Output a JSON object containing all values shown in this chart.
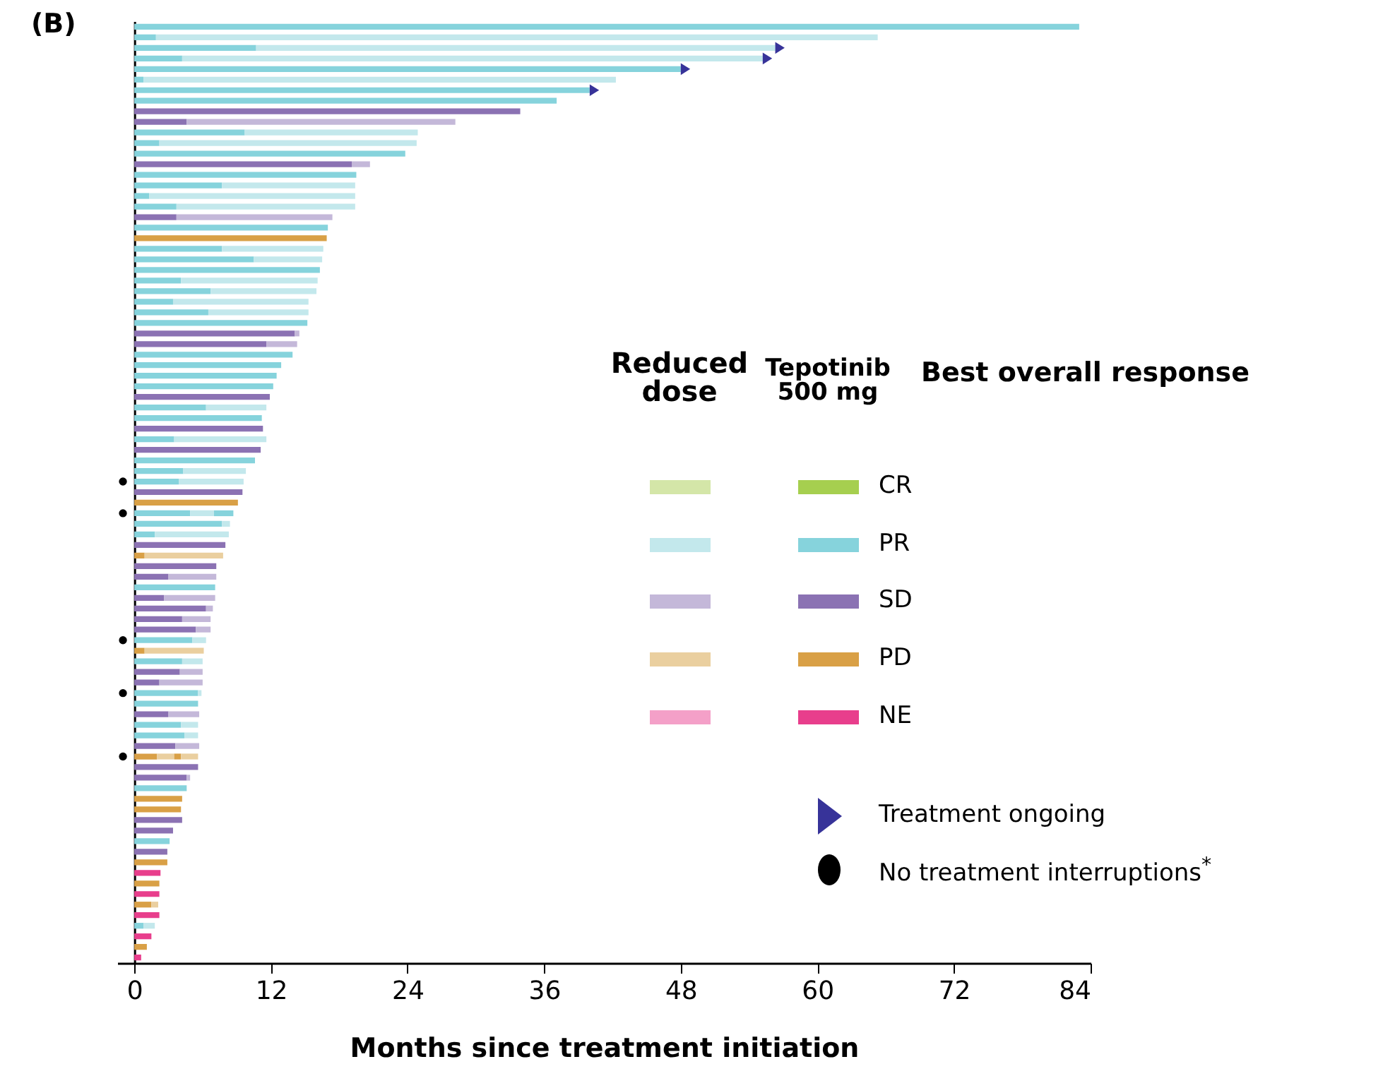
{
  "chart_data": {
    "type": "bar",
    "orientation": "horizontal",
    "stacked": true,
    "title": "(B)",
    "xlabel": "Months since treatment initiation",
    "legend_title": "Best overall response",
    "legend": "right",
    "annotations": [
      "Tepotinib 500 mg",
      "Reduced dose"
    ],
    "categories": [
      null,
      null,
      null,
      null,
      null,
      null,
      null,
      null,
      null,
      null,
      null,
      null,
      null,
      null,
      null,
      null,
      null,
      null,
      null,
      null,
      null,
      null,
      null,
      null,
      null,
      null,
      null,
      null,
      null,
      null,
      null,
      null,
      null,
      null,
      null,
      null,
      null,
      null,
      null,
      null,
      null,
      null,
      null,
      null,
      null,
      null,
      null,
      null,
      null,
      null,
      null,
      null,
      null,
      null,
      null,
      null,
      null,
      null,
      null,
      null,
      null,
      null,
      null,
      null,
      null,
      null,
      null,
      null,
      null,
      null,
      null,
      null,
      null,
      null,
      null,
      null,
      null,
      null,
      null,
      null,
      null,
      null,
      null,
      null,
      null,
      null,
      null,
      null,
      null
    ],
    "xlim": [
      -1.5,
      84
    ],
    "xticks": [
      0,
      12,
      24,
      36,
      48,
      60,
      72,
      84
    ],
    "series": [
      {
        "name": "CR",
        "color": "#a6cf4f",
        "values": [
          null,
          null,
          null,
          null,
          null,
          null,
          null,
          null,
          null,
          null,
          null,
          null,
          null,
          null,
          null,
          null,
          null,
          null,
          null,
          null,
          null,
          null,
          null,
          null,
          null,
          null,
          null,
          null,
          null,
          null,
          null,
          null,
          null,
          null,
          null,
          null,
          null,
          null,
          null,
          null,
          null,
          null,
          null,
          null,
          null,
          null,
          null,
          null,
          null,
          null,
          null,
          null,
          null,
          null,
          null,
          null,
          null,
          null,
          null,
          null,
          null,
          null,
          null,
          null,
          null,
          null,
          null,
          null,
          null,
          null,
          null,
          null,
          null,
          null,
          null,
          null,
          null,
          null,
          null,
          null,
          null,
          null,
          null,
          null,
          null,
          null,
          null,
          null,
          null
        ]
      },
      {
        "name": "PR",
        "color": "#86d3dc",
        "values": [
          83.0,
          1.9,
          10.7,
          4.2,
          48.0,
          0.8,
          40.0,
          37.1,
          null,
          null,
          9.7,
          2.2,
          23.8,
          null,
          19.5,
          7.7,
          1.3,
          3.7,
          null,
          17.0,
          null,
          7.7,
          10.5,
          16.3,
          4.1,
          6.7,
          3.4,
          6.5,
          15.2,
          null,
          null,
          13.9,
          12.9,
          12.5,
          12.2,
          null,
          6.3,
          11.2,
          null,
          3.5,
          null,
          10.6,
          4.3,
          3.9,
          null,
          null,
          4.9,
          7.7,
          1.8,
          null,
          null,
          null,
          null,
          7.1,
          null,
          null,
          null,
          null,
          5.1,
          null,
          4.2,
          null,
          null,
          5.6,
          5.6,
          null,
          4.1,
          4.4,
          null,
          null,
          null,
          null,
          4.6,
          null,
          null,
          null,
          null,
          3.1,
          null,
          null,
          null,
          null,
          null,
          null,
          null,
          0.8,
          null,
          null,
          null
        ]
      },
      {
        "name": "SD",
        "color": "#8b72b3",
        "values": [
          null,
          null,
          null,
          null,
          null,
          null,
          null,
          null,
          33.9,
          4.6,
          null,
          null,
          null,
          19.1,
          null,
          null,
          null,
          null,
          3.7,
          null,
          null,
          null,
          null,
          null,
          null,
          null,
          null,
          null,
          null,
          14.1,
          11.6,
          null,
          null,
          null,
          null,
          11.9,
          null,
          null,
          11.3,
          null,
          11.1,
          null,
          null,
          null,
          9.5,
          null,
          null,
          null,
          null,
          8.0,
          null,
          7.2,
          3.0,
          null,
          2.6,
          6.3,
          4.2,
          5.4,
          null,
          null,
          null,
          4.0,
          2.2,
          null,
          null,
          3.0,
          null,
          null,
          3.6,
          null,
          5.6,
          4.6,
          null,
          null,
          null,
          4.2,
          3.4,
          null,
          2.9,
          null,
          null,
          null,
          null,
          null,
          null,
          null,
          null,
          null,
          null
        ]
      },
      {
        "name": "PD",
        "color": "#d9a046",
        "values": [
          null,
          null,
          null,
          null,
          null,
          null,
          null,
          null,
          null,
          null,
          null,
          null,
          null,
          null,
          null,
          null,
          null,
          null,
          null,
          null,
          16.9,
          null,
          null,
          null,
          null,
          null,
          null,
          null,
          null,
          null,
          null,
          null,
          null,
          null,
          null,
          null,
          null,
          null,
          null,
          null,
          null,
          null,
          null,
          null,
          null,
          9.1,
          null,
          null,
          null,
          null,
          0.9,
          null,
          null,
          null,
          null,
          null,
          null,
          null,
          null,
          0.9,
          null,
          null,
          null,
          null,
          null,
          null,
          null,
          null,
          null,
          2.0,
          null,
          null,
          null,
          4.2,
          4.1,
          null,
          null,
          null,
          null,
          2.9,
          null,
          2.2,
          null,
          1.5,
          null,
          null,
          null,
          1.1,
          null
        ]
      },
      {
        "name": "NE",
        "color": "#e83e8c",
        "values": [
          null,
          null,
          null,
          null,
          null,
          null,
          null,
          null,
          null,
          null,
          null,
          null,
          null,
          null,
          null,
          null,
          null,
          null,
          null,
          null,
          null,
          null,
          null,
          null,
          null,
          null,
          null,
          null,
          null,
          null,
          null,
          null,
          null,
          null,
          null,
          null,
          null,
          null,
          null,
          null,
          null,
          null,
          null,
          null,
          null,
          null,
          null,
          null,
          null,
          null,
          null,
          null,
          null,
          null,
          null,
          null,
          null,
          null,
          null,
          null,
          null,
          null,
          null,
          null,
          null,
          null,
          null,
          null,
          null,
          null,
          null,
          null,
          null,
          null,
          null,
          null,
          null,
          null,
          null,
          null,
          2.3,
          null,
          2.2,
          null,
          2.2,
          null,
          1.5,
          null,
          0.6
        ]
      },
      {
        "color": "#d4e6a8",
        "values": [
          null,
          null,
          null,
          null,
          null,
          null,
          null,
          null,
          null,
          null,
          null,
          null,
          null,
          null,
          null,
          null,
          null,
          null,
          null,
          null,
          null,
          null,
          null,
          null,
          null,
          null,
          null,
          null,
          null,
          null,
          null,
          null,
          null,
          null,
          null,
          null,
          null,
          null,
          null,
          null,
          null,
          null,
          null,
          null,
          null,
          null,
          null,
          null,
          null,
          null,
          null,
          null,
          null,
          null,
          null,
          null,
          null,
          null,
          null,
          null,
          null,
          null,
          null,
          null,
          null,
          null,
          null,
          null,
          null,
          null,
          null,
          null,
          null,
          null,
          null,
          null,
          null,
          null,
          null,
          null,
          null,
          null,
          null,
          null,
          null,
          null,
          null,
          null,
          null
        ]
      },
      {
        "color": "#c3e8ec",
        "values": [
          null,
          63.4,
          45.6,
          51.0,
          null,
          41.5,
          null,
          null,
          null,
          null,
          15.2,
          22.6,
          null,
          null,
          null,
          11.7,
          18.1,
          15.7,
          null,
          null,
          null,
          8.9,
          6.0,
          null,
          12.0,
          9.3,
          11.9,
          8.8,
          null,
          null,
          null,
          null,
          null,
          null,
          null,
          null,
          5.3,
          null,
          null,
          8.1,
          null,
          null,
          5.5,
          5.7,
          null,
          null,
          2.1,
          0.7,
          6.5,
          null,
          null,
          null,
          null,
          null,
          null,
          null,
          null,
          null,
          1.2,
          null,
          1.8,
          null,
          null,
          0.3,
          null,
          null,
          1.5,
          1.2,
          null,
          null,
          null,
          null,
          null,
          null,
          null,
          null,
          null,
          null,
          null,
          null,
          null,
          null,
          null,
          null,
          null,
          1.0,
          null,
          null,
          null
        ]
      },
      {
        "color": "#c4b8d9",
        "values": [
          null,
          null,
          null,
          null,
          null,
          null,
          null,
          null,
          null,
          23.6,
          null,
          null,
          null,
          1.6,
          null,
          null,
          null,
          null,
          13.7,
          null,
          null,
          null,
          null,
          null,
          null,
          null,
          null,
          null,
          null,
          0.4,
          2.7,
          null,
          null,
          null,
          null,
          null,
          null,
          null,
          null,
          null,
          null,
          null,
          null,
          null,
          null,
          null,
          null,
          null,
          null,
          null,
          null,
          null,
          4.2,
          null,
          4.5,
          0.6,
          2.5,
          1.3,
          null,
          null,
          null,
          2.0,
          3.8,
          null,
          null,
          2.7,
          null,
          null,
          2.1,
          null,
          null,
          0.3,
          null,
          null,
          null,
          null,
          null,
          null,
          null,
          null,
          null,
          null,
          null,
          null,
          null,
          null,
          null,
          null,
          null
        ]
      },
      {
        "color": "#eacf9f",
        "values": [
          null,
          null,
          null,
          null,
          null,
          null,
          null,
          null,
          null,
          null,
          null,
          null,
          null,
          null,
          null,
          null,
          null,
          null,
          null,
          null,
          null,
          null,
          null,
          null,
          null,
          null,
          null,
          null,
          null,
          null,
          null,
          null,
          null,
          null,
          null,
          null,
          null,
          null,
          null,
          null,
          null,
          null,
          null,
          null,
          null,
          null,
          null,
          null,
          null,
          null,
          6.9,
          null,
          null,
          null,
          null,
          null,
          null,
          null,
          null,
          5.2,
          null,
          null,
          null,
          null,
          null,
          null,
          null,
          null,
          null,
          1.5,
          null,
          null,
          null,
          null,
          null,
          null,
          null,
          null,
          null,
          null,
          null,
          null,
          null,
          0.6,
          null,
          null,
          null,
          null,
          null
        ]
      },
      {
        "color": "#f4a0c8",
        "values": [
          null,
          null,
          null,
          null,
          null,
          null,
          null,
          null,
          null,
          null,
          null,
          null,
          null,
          null,
          null,
          null,
          null,
          null,
          null,
          null,
          null,
          null,
          null,
          null,
          null,
          null,
          null,
          null,
          null,
          null,
          null,
          null,
          null,
          null,
          null,
          null,
          null,
          null,
          null,
          null,
          null,
          null,
          null,
          null,
          null,
          null,
          null,
          null,
          null,
          null,
          null,
          null,
          null,
          null,
          null,
          null,
          null,
          null,
          null,
          null,
          null,
          null,
          null,
          null,
          null,
          null,
          null,
          null,
          null,
          null,
          null,
          null,
          null,
          null,
          null,
          null,
          null,
          null,
          null,
          null,
          null,
          null,
          null,
          null,
          null,
          null,
          null,
          null,
          null
        ]
      },
      {
        "color": "#86d3dc",
        "values": [
          null,
          null,
          null,
          null,
          null,
          null,
          null,
          null,
          null,
          null,
          null,
          null,
          null,
          null,
          null,
          null,
          null,
          null,
          null,
          null,
          null,
          null,
          null,
          null,
          null,
          null,
          null,
          null,
          null,
          null,
          null,
          null,
          null,
          null,
          null,
          null,
          null,
          null,
          null,
          null,
          null,
          null,
          null,
          null,
          null,
          null,
          1.7,
          null,
          null,
          null,
          null,
          null,
          null,
          null,
          null,
          null,
          null,
          null,
          null,
          null,
          null,
          null,
          null,
          null,
          null,
          null,
          null,
          null,
          null,
          null,
          null,
          null,
          null,
          null,
          null,
          null,
          null,
          null,
          null,
          null,
          null,
          null,
          null,
          null,
          null,
          null,
          null,
          null,
          null
        ]
      },
      {
        "color": "#d9a046",
        "values": [
          null,
          null,
          null,
          null,
          null,
          null,
          null,
          null,
          null,
          null,
          null,
          null,
          null,
          null,
          null,
          null,
          null,
          null,
          null,
          null,
          null,
          null,
          null,
          null,
          null,
          null,
          null,
          null,
          null,
          null,
          null,
          null,
          null,
          null,
          null,
          null,
          null,
          null,
          null,
          null,
          null,
          null,
          null,
          null,
          null,
          null,
          null,
          null,
          null,
          null,
          null,
          null,
          null,
          null,
          null,
          null,
          null,
          null,
          null,
          null,
          null,
          null,
          null,
          null,
          null,
          null,
          null,
          null,
          null,
          0.6,
          null,
          null,
          null,
          null,
          null,
          null,
          null,
          null,
          null,
          null,
          null,
          null,
          null,
          null,
          null,
          null,
          null,
          null,
          null
        ]
      },
      {
        "color": "#eacf9f",
        "values": [
          null,
          null,
          null,
          null,
          null,
          null,
          null,
          null,
          null,
          null,
          null,
          null,
          null,
          null,
          null,
          null,
          null,
          null,
          null,
          null,
          null,
          null,
          null,
          null,
          null,
          null,
          null,
          null,
          null,
          null,
          null,
          null,
          null,
          null,
          null,
          null,
          null,
          null,
          null,
          null,
          null,
          null,
          null,
          null,
          null,
          null,
          null,
          null,
          null,
          null,
          null,
          null,
          null,
          null,
          null,
          null,
          null,
          null,
          null,
          null,
          null,
          null,
          null,
          null,
          null,
          null,
          null,
          null,
          null,
          1.5,
          null,
          null,
          null,
          null,
          null,
          null,
          null,
          null,
          null,
          null,
          null,
          null,
          null,
          null,
          null,
          null,
          null,
          null,
          null
        ]
      },
      {
        "name": "Treatment ongoing",
        "type": "scatter",
        "marker": "triangle",
        "color": "#373399",
        "values": [
          null,
          null,
          56.3,
          55.2,
          48.0,
          null,
          40.0,
          null,
          null,
          null,
          null,
          null,
          null,
          null,
          null,
          null,
          null,
          null,
          null,
          null,
          null,
          null,
          null,
          null,
          null,
          null,
          null,
          null,
          null,
          null,
          null,
          null,
          null,
          null,
          null,
          null,
          null,
          null,
          null,
          null,
          null,
          null,
          null,
          null,
          null,
          null,
          null,
          null,
          null,
          null,
          null,
          null,
          null,
          null,
          null,
          null,
          null,
          null,
          null,
          null,
          null,
          null,
          null,
          null,
          null,
          null,
          null,
          null,
          null,
          null,
          null,
          null,
          null,
          null,
          null,
          null,
          null,
          null,
          null,
          null,
          null,
          null,
          null,
          null,
          null,
          null,
          null,
          null,
          null
        ]
      },
      {
        "name": "No treatment interruptions$^{*}$",
        "type": "scatter",
        "marker": "circle",
        "color": "#000000",
        "values": [
          null,
          null,
          null,
          null,
          null,
          null,
          null,
          null,
          null,
          null,
          null,
          null,
          null,
          null,
          null,
          null,
          null,
          null,
          null,
          null,
          null,
          null,
          null,
          null,
          null,
          null,
          null,
          null,
          null,
          null,
          null,
          null,
          null,
          null,
          null,
          null,
          null,
          null,
          null,
          null,
          null,
          null,
          null,
          -1,
          null,
          null,
          -1,
          null,
          null,
          null,
          null,
          null,
          null,
          null,
          null,
          null,
          null,
          null,
          -1,
          null,
          null,
          null,
          null,
          -1,
          null,
          null,
          null,
          null,
          null,
          -1,
          null,
          null,
          null,
          null,
          null,
          null,
          null,
          null,
          null,
          null,
          null,
          null,
          null,
          null,
          null,
          null,
          null,
          null,
          null
        ]
      }
    ]
  }
}
